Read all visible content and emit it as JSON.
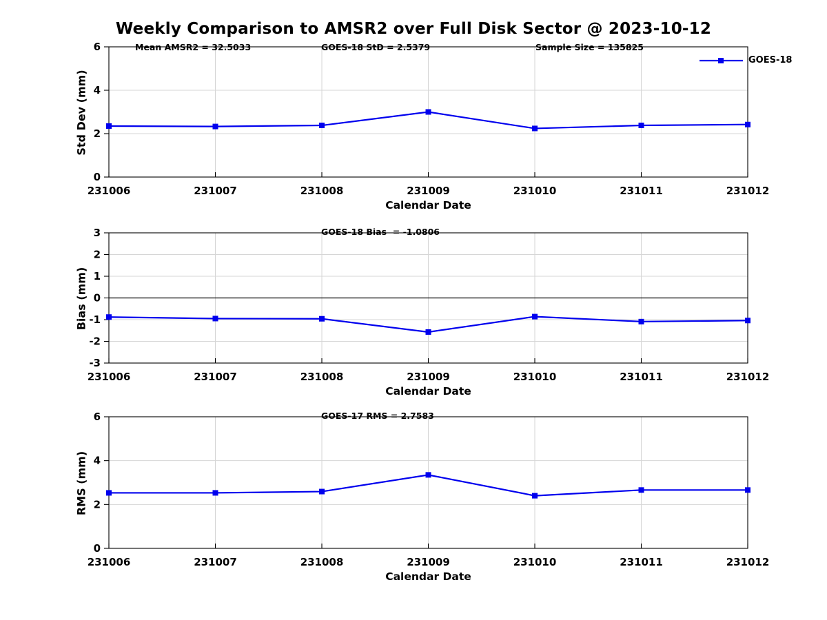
{
  "page": {
    "title": "Weekly Comparison to AMSR2 over Full Disk Sector @ 2023-10-12"
  },
  "legend": {
    "label": "GOES-18",
    "position": "top-right"
  },
  "colors": {
    "series": "#0000ee",
    "grid": "#d6d6d6",
    "axis": "#000000",
    "zero_line": "#000000",
    "text": "#000000",
    "background": "#ffffff"
  },
  "chart_data": [
    {
      "type": "line",
      "name": "std-dev",
      "annotations": [
        "Mean AMSR2 = 32.5033",
        "GOES-18 StD = 2.5379",
        "Sample Size = 135825"
      ],
      "ylabel": "Std Dev (mm)",
      "xlabel": "Calendar Date",
      "categories": [
        "231006",
        "231007",
        "231008",
        "231009",
        "231010",
        "231011",
        "231012"
      ],
      "series": [
        {
          "name": "GOES-18",
          "marker": "square",
          "values": [
            2.35,
            2.33,
            2.38,
            3.0,
            2.24,
            2.38,
            2.42
          ]
        }
      ],
      "ylim": [
        0,
        6
      ],
      "yticks": [
        0,
        2,
        4,
        6
      ],
      "grid": true,
      "zero_line": false
    },
    {
      "type": "line",
      "name": "bias",
      "annotations": [
        "GOES-18 Bias  = -1.0806"
      ],
      "ylabel": "Bias (mm)",
      "xlabel": "Calendar Date",
      "categories": [
        "231006",
        "231007",
        "231008",
        "231009",
        "231010",
        "231011",
        "231012"
      ],
      "series": [
        {
          "name": "GOES-18",
          "marker": "square",
          "values": [
            -0.88,
            -0.95,
            -0.96,
            -1.57,
            -0.86,
            -1.09,
            -1.04
          ]
        }
      ],
      "ylim": [
        -3,
        3
      ],
      "yticks": [
        3,
        2,
        1,
        0,
        -1,
        -2,
        -3
      ],
      "grid": true,
      "zero_line": true
    },
    {
      "type": "line",
      "name": "rms",
      "annotations": [
        "GOES-17 RMS = 2.7583"
      ],
      "ylabel": "RMS (mm)",
      "xlabel": "Calendar Date",
      "categories": [
        "231006",
        "231007",
        "231008",
        "231009",
        "231010",
        "231011",
        "231012"
      ],
      "series": [
        {
          "name": "GOES-18",
          "marker": "square",
          "values": [
            2.53,
            2.53,
            2.59,
            3.35,
            2.4,
            2.66,
            2.66
          ]
        }
      ],
      "ylim": [
        0,
        6
      ],
      "yticks": [
        0,
        2,
        4,
        6
      ],
      "grid": true,
      "zero_line": false
    }
  ]
}
